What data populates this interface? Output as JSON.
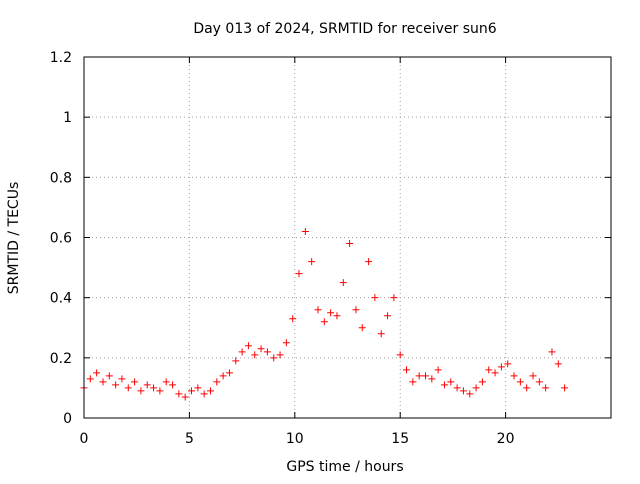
{
  "chart_data": {
    "type": "scatter",
    "title": "Day 013 of 2024, SRMTID for receiver sun6",
    "xlabel": "GPS time / hours",
    "ylabel": "SRMTID / TECUs",
    "xlim": [
      0,
      25
    ],
    "ylim": [
      0,
      1.2
    ],
    "xticks": [
      0,
      5,
      10,
      15,
      20
    ],
    "xtick_labels": [
      "0",
      "5",
      "10",
      "15",
      "20"
    ],
    "yticks": [
      0,
      0.2,
      0.4,
      0.6,
      0.8,
      1.0,
      1.2
    ],
    "ytick_labels": [
      "0",
      "0.2",
      "0.4",
      "0.6",
      "0.8",
      "1",
      "1.2"
    ],
    "grid": true,
    "marker": "+",
    "color": "#ff0000",
    "series": [
      {
        "name": "sun6",
        "x": [
          0.0,
          0.3,
          0.6,
          0.9,
          1.2,
          1.5,
          1.8,
          2.1,
          2.4,
          2.7,
          3.0,
          3.3,
          3.6,
          3.9,
          4.2,
          4.5,
          4.8,
          5.1,
          5.4,
          5.7,
          6.0,
          6.3,
          6.6,
          6.9,
          7.2,
          7.5,
          7.8,
          8.1,
          8.4,
          8.7,
          9.0,
          9.3,
          9.6,
          9.9,
          10.2,
          10.5,
          10.8,
          11.1,
          11.4,
          11.7,
          12.0,
          12.3,
          12.6,
          12.9,
          13.2,
          13.5,
          13.8,
          14.1,
          14.4,
          14.7,
          15.0,
          15.3,
          15.6,
          15.9,
          16.2,
          16.5,
          16.8,
          17.1,
          17.4,
          17.7,
          18.0,
          18.3,
          18.6,
          18.9,
          19.2,
          19.5,
          19.8,
          20.1,
          20.4,
          20.7,
          21.0,
          21.3,
          21.6,
          21.9,
          22.2,
          22.5,
          22.8
        ],
        "y": [
          0.1,
          0.13,
          0.15,
          0.12,
          0.14,
          0.11,
          0.13,
          0.1,
          0.12,
          0.09,
          0.11,
          0.1,
          0.09,
          0.12,
          0.11,
          0.08,
          0.07,
          0.09,
          0.1,
          0.08,
          0.09,
          0.12,
          0.14,
          0.15,
          0.19,
          0.22,
          0.24,
          0.21,
          0.23,
          0.22,
          0.2,
          0.21,
          0.25,
          0.33,
          0.48,
          0.62,
          0.52,
          0.36,
          0.32,
          0.35,
          0.34,
          0.45,
          0.58,
          0.36,
          0.3,
          0.52,
          0.4,
          0.28,
          0.34,
          0.4,
          0.21,
          0.16,
          0.12,
          0.14,
          0.14,
          0.13,
          0.16,
          0.11,
          0.12,
          0.1,
          0.09,
          0.08,
          0.1,
          0.12,
          0.16,
          0.15,
          0.17,
          0.18,
          0.14,
          0.12,
          0.1,
          0.14,
          0.12,
          0.1,
          0.22,
          0.18,
          0.1
        ]
      }
    ]
  }
}
